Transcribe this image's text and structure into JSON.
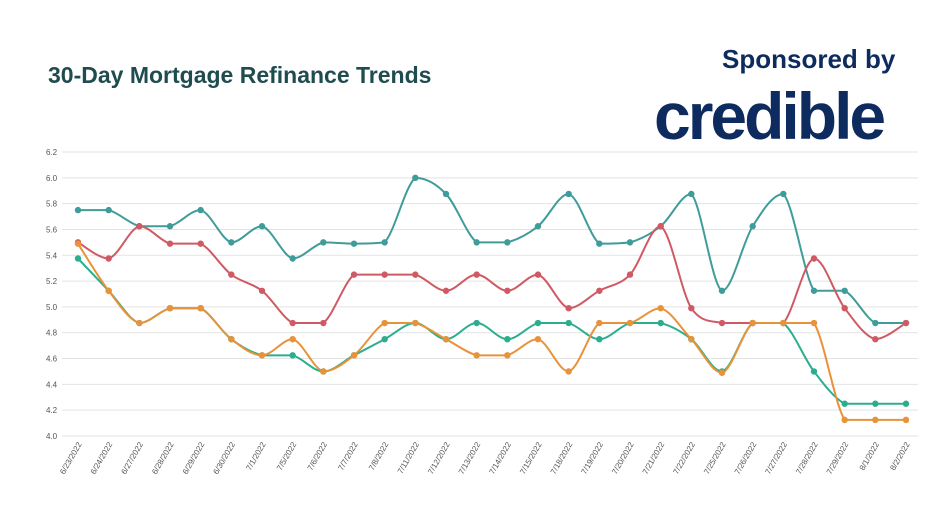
{
  "chart_data": {
    "type": "line",
    "title": "30-Day Mortgage Refinance Trends",
    "xlabel": "",
    "ylabel": "",
    "ylim": [
      4.0,
      6.2
    ],
    "yticks": [
      "6.2",
      "6.0",
      "5.8",
      "5.6",
      "5.4",
      "5.2",
      "5.0",
      "4.8",
      "4.6",
      "4.4",
      "4.2",
      "4.0"
    ],
    "grid": true,
    "legend": "none",
    "categories": [
      "6/23/2022",
      "6/24/2022",
      "6/27/2022",
      "6/28/2022",
      "6/29/2022",
      "6/30/2022",
      "7/1/2022",
      "7/5/2022",
      "7/6/2022",
      "7/7/2022",
      "7/8/2022",
      "7/11/2022",
      "7/12/2022",
      "7/13/2022",
      "7/14/2022",
      "7/15/2022",
      "7/18/2022",
      "7/19/2022",
      "7/20/2022",
      "7/21/2022",
      "7/22/2022",
      "7/25/2022",
      "7/26/2022",
      "7/27/2022",
      "7/28/2022",
      "7/29/2022",
      "8/1/2022",
      "8/2/2022"
    ],
    "series": [
      {
        "color": "#3f9c9a",
        "values": [
          5.75,
          5.75,
          5.625,
          5.625,
          5.75,
          5.5,
          5.625,
          5.375,
          5.5,
          5.49,
          5.5,
          6.0,
          5.875,
          5.5,
          5.5,
          5.625,
          5.875,
          5.49,
          5.5,
          5.625,
          5.875,
          5.125,
          5.625,
          5.875,
          5.125,
          5.125,
          4.875,
          4.875
        ]
      },
      {
        "color": "#cf5a64",
        "values": [
          5.5,
          5.375,
          5.625,
          5.49,
          5.49,
          5.25,
          5.125,
          4.875,
          4.875,
          5.25,
          5.25,
          5.25,
          5.125,
          5.25,
          5.125,
          5.25,
          4.99,
          5.125,
          5.25,
          5.625,
          4.99,
          4.875,
          4.875,
          4.875,
          5.375,
          4.99,
          4.75,
          4.875
        ]
      },
      {
        "color": "#2bae8f",
        "values": [
          5.375,
          5.125,
          4.875,
          4.99,
          4.99,
          4.75,
          4.625,
          4.625,
          4.5,
          4.625,
          4.75,
          4.875,
          4.75,
          4.875,
          4.75,
          4.875,
          4.875,
          4.75,
          4.875,
          4.875,
          4.75,
          4.5,
          4.875,
          4.875,
          4.5,
          4.25,
          4.25,
          4.25
        ]
      },
      {
        "color": "#e8923a",
        "values": [
          5.49,
          5.125,
          4.875,
          4.99,
          4.99,
          4.75,
          4.625,
          4.75,
          4.5,
          4.625,
          4.875,
          4.875,
          4.75,
          4.625,
          4.625,
          4.75,
          4.5,
          4.875,
          4.875,
          4.99,
          4.75,
          4.49,
          4.875,
          4.875,
          4.875,
          4.125,
          4.125,
          4.125
        ]
      }
    ]
  },
  "sponsor": {
    "label": "Sponsored by",
    "brand": "credible"
  }
}
